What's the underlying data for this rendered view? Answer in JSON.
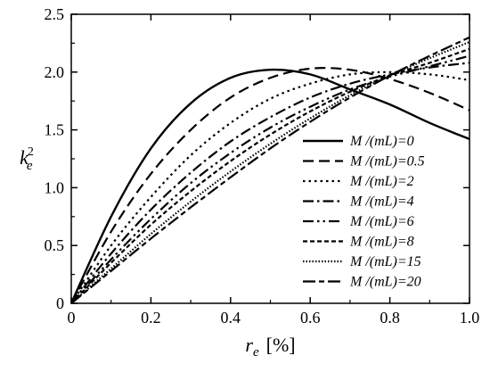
{
  "chart_data": {
    "type": "line",
    "title": "",
    "xlabel": {
      "main": "r",
      "sub": "e",
      "unit": "[%]"
    },
    "ylabel": {
      "main": "k",
      "sub": "e",
      "sup": "2"
    },
    "xlim": [
      0,
      1.0
    ],
    "ylim": [
      0,
      2.5
    ],
    "xticks": [
      "0",
      "0.2",
      "0.4",
      "0.6",
      "0.8",
      "1.0"
    ],
    "yticks": [
      "0",
      "0.5",
      "1.0",
      "1.5",
      "2.0",
      "2.5"
    ],
    "grid": false,
    "legend_position": "lower-right",
    "x": [
      0,
      0.1,
      0.2,
      0.3,
      0.4,
      0.5,
      0.6,
      0.7,
      0.8,
      0.9,
      1.0
    ],
    "series": [
      {
        "name": "M /(mL)=0",
        "dash": "solid",
        "values": [
          0,
          0.75,
          1.34,
          1.73,
          1.95,
          2.02,
          1.98,
          1.85,
          1.72,
          1.56,
          1.42
        ]
      },
      {
        "name": "M /(mL)=0.5",
        "dash": "dash",
        "values": [
          0,
          0.62,
          1.12,
          1.5,
          1.78,
          1.95,
          2.03,
          2.02,
          1.94,
          1.82,
          1.67
        ]
      },
      {
        "name": "M /(mL)=2",
        "dash": "dot",
        "values": [
          0,
          0.5,
          0.92,
          1.28,
          1.56,
          1.77,
          1.9,
          1.98,
          2.0,
          1.98,
          1.93
        ]
      },
      {
        "name": "M /(mL)=4",
        "dash": "dashdot",
        "values": [
          0,
          0.43,
          0.81,
          1.13,
          1.4,
          1.61,
          1.78,
          1.9,
          1.98,
          2.04,
          2.08
        ]
      },
      {
        "name": "M /(mL)=6",
        "dash": "dashdotdot",
        "values": [
          0,
          0.38,
          0.73,
          1.04,
          1.3,
          1.52,
          1.7,
          1.85,
          1.96,
          2.05,
          2.14
        ]
      },
      {
        "name": "M /(mL)=8",
        "dash": "shortdash",
        "values": [
          0,
          0.35,
          0.68,
          0.97,
          1.23,
          1.46,
          1.66,
          1.83,
          1.97,
          2.08,
          2.2
        ]
      },
      {
        "name": "M /(mL)=15",
        "dash": "shortdot",
        "values": [
          0,
          0.3,
          0.6,
          0.88,
          1.14,
          1.38,
          1.6,
          1.8,
          1.97,
          2.12,
          2.26
        ]
      },
      {
        "name": "M /(mL)=20",
        "dash": "longdashdot",
        "values": [
          0,
          0.28,
          0.56,
          0.83,
          1.09,
          1.34,
          1.57,
          1.78,
          1.97,
          2.14,
          2.3
        ]
      }
    ]
  }
}
